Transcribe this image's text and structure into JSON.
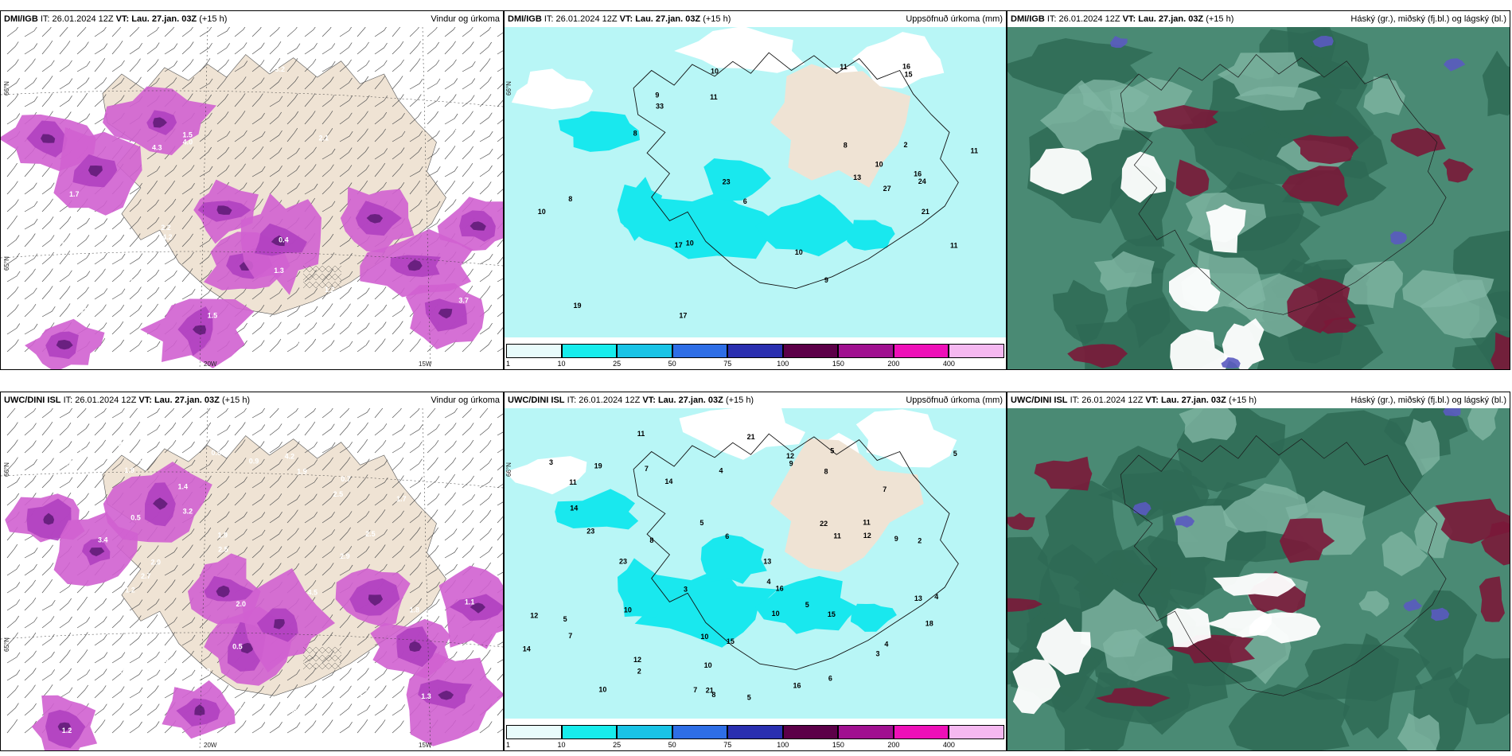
{
  "panels": [
    {
      "id": "p1",
      "header": {
        "model": "DMI/IGB",
        "it_label": "IT:",
        "it_value": "26.01.2024 12Z",
        "vt_label": "VT:",
        "vt_value": "Lau. 27.jan. 03Z",
        "lead": "(+15 h)",
        "title": "Vindur og úrkoma"
      },
      "labels": [
        "1.7",
        "4.3",
        "1.2",
        "1.5",
        "2.1",
        "3.2",
        "3.1",
        "4.2",
        "5.3",
        "10.6",
        "2.2",
        "2.0",
        "4.0",
        "1.5",
        "2.1",
        "0.4",
        "3.7",
        "1.2",
        "1.1",
        "2.9",
        "1.3"
      ],
      "tick_labels": [
        "66°N",
        "65°N",
        "20W",
        "15W"
      ]
    },
    {
      "id": "p2",
      "header": {
        "model": "DMI/IGB",
        "it_label": "IT:",
        "it_value": "26.01.2024 12Z",
        "vt_label": "VT:",
        "vt_value": "Lau. 27.jan. 03Z",
        "lead": "(+15 h)",
        "title": "Uppsöfnuð úrkoma (mm)"
      },
      "labels": [
        "11",
        "6",
        "10",
        "23",
        "17",
        "15",
        "16",
        "33",
        "2",
        "8",
        "8",
        "10",
        "11",
        "24",
        "27",
        "17",
        "19",
        "10",
        "13",
        "16",
        "10",
        "11",
        "9",
        "9",
        "10",
        "21",
        "11",
        "8"
      ],
      "tick_labels": [
        "66°N"
      ]
    },
    {
      "id": "p3",
      "header": {
        "model": "DMI/IGB",
        "it_label": "IT:",
        "it_value": "26.01.2024 12Z",
        "vt_label": "VT:",
        "vt_value": "Lau. 27.jan. 03Z",
        "lead": "(+15 h)",
        "title": "Háský (gr.), miðský (fj.bl.) og lágský (bl.)"
      },
      "labels": [],
      "tick_labels": []
    },
    {
      "id": "p4",
      "header": {
        "model": "UWC/DINI ISL",
        "it_label": "IT:",
        "it_value": "26.01.2024 12Z",
        "vt_label": "VT:",
        "vt_value": "Lau. 27.jan. 03Z",
        "lead": "(+15 h)",
        "title": "Vindur og úrkoma"
      },
      "labels": [
        "0.6",
        "0.9",
        "1.3",
        "3.4",
        "3.2",
        "4.2",
        "1.9",
        "0.9",
        "1.9",
        "2.5",
        "0.8",
        "1.9",
        "0.5",
        "0.6",
        "1.0",
        "0.5",
        "1.3",
        "2.0",
        "2.9",
        "2.5",
        "1.3",
        "1.9",
        "4.3",
        "4.1",
        "2.5",
        "3.8",
        "2.7",
        "4.5",
        "3.8",
        "1.9",
        "1.4",
        "2.0",
        "1.7",
        "2.2",
        "1.4",
        "1.6",
        "2.0",
        "1.8",
        "1.2",
        "1.1",
        "1.2",
        "1.5",
        "0.7",
        "0.5",
        "0.4",
        "1.2",
        "2.1",
        "2.3",
        "0.7"
      ],
      "tick_labels": [
        "66°N",
        "65°N",
        "20W",
        "15W"
      ]
    },
    {
      "id": "p5",
      "header": {
        "model": "UWC/DINI ISL",
        "it_label": "IT:",
        "it_value": "26.01.2024 12Z",
        "vt_label": "VT:",
        "vt_value": "Lau. 27.jan. 03Z",
        "lead": "(+15 h)",
        "title": "Uppsöfnuð úrkoma (mm)"
      },
      "labels": [
        "5",
        "4",
        "3",
        "7",
        "2",
        "3",
        "5",
        "13",
        "12",
        "21",
        "10",
        "22",
        "18",
        "11",
        "16",
        "15",
        "12",
        "8",
        "11",
        "9",
        "15",
        "16",
        "14",
        "12",
        "14",
        "23",
        "21",
        "11",
        "13",
        "19",
        "23",
        "7",
        "5",
        "4",
        "4",
        "5",
        "8",
        "10",
        "9",
        "5",
        "6",
        "6",
        "7",
        "11",
        "10",
        "12",
        "10",
        "3",
        "5",
        "4",
        "2",
        "7",
        "8",
        "10",
        "14"
      ],
      "tick_labels": [
        "66°N"
      ]
    },
    {
      "id": "p6",
      "header": {
        "model": "UWC/DINI ISL",
        "it_label": "IT:",
        "it_value": "26.01.2024 12Z",
        "vt_label": "VT:",
        "vt_value": "Lau. 27.jan. 03Z",
        "lead": "(+15 h)",
        "title": "Háský (gr.), miðský (fj.bl.) og lágský (bl.)"
      },
      "labels": [],
      "tick_labels": []
    }
  ],
  "colorbar": {
    "ticks": [
      "1",
      "10",
      "25",
      "50",
      "75",
      "100",
      "150",
      "200",
      "400"
    ],
    "colors": [
      "#e8fbfb",
      "#17ecec",
      "#19c3e6",
      "#2e6ee6",
      "#2a2fb0",
      "#5c0048",
      "#a01090",
      "#ee10b8",
      "#f5b8f0"
    ]
  },
  "colors": {
    "land": "#efe3d4",
    "precip_light": "#d060d0",
    "precip_mid": "#b040c0",
    "precip_dark": "#6a2080",
    "accum_bg": "#b8f6f6",
    "accum_cyan": "#19e8ee",
    "cloud_dark": "#2e6a55",
    "cloud_mid": "#4a8a74",
    "cloud_light": "#7fb5a3",
    "cloud_red": "#7a1838",
    "cloud_blue": "#5a5ac0"
  }
}
